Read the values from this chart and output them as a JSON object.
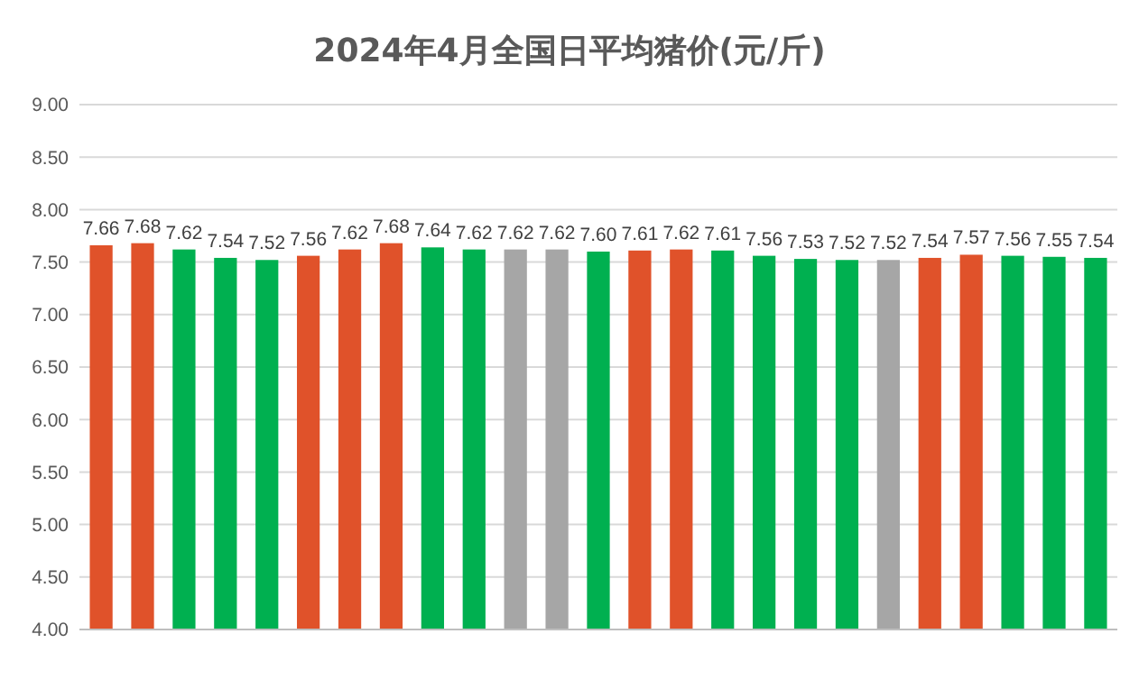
{
  "chart_data": {
    "type": "bar",
    "title": "2024年4月全国日平均猪价(元/斤)",
    "categories": [
      null,
      null,
      null,
      null,
      null,
      null,
      null,
      null,
      null,
      null,
      null,
      null,
      null,
      null,
      null,
      null,
      null,
      null,
      null,
      null,
      null,
      null,
      null,
      null,
      null
    ],
    "values": [
      7.66,
      7.68,
      7.62,
      7.54,
      7.52,
      7.56,
      7.62,
      7.68,
      7.64,
      7.62,
      7.62,
      7.62,
      7.6,
      7.61,
      7.62,
      7.61,
      7.56,
      7.53,
      7.52,
      7.52,
      7.54,
      7.57,
      7.56,
      7.55,
      7.54
    ],
    "value_labels": [
      "7.66",
      "7.68",
      "7.62",
      "7.54",
      "7.52",
      "7.56",
      "7.62",
      "7.68",
      "7.64",
      "7.62",
      "7.62",
      "7.62",
      "7.60",
      "7.61",
      "7.62",
      "7.61",
      "7.56",
      "7.53",
      "7.52",
      "7.52",
      "7.54",
      "7.57",
      "7.56",
      "7.55",
      "7.54"
    ],
    "colors": [
      "#e0522a",
      "#e0522a",
      "#00b050",
      "#00b050",
      "#00b050",
      "#e0522a",
      "#e0522a",
      "#e0522a",
      "#00b050",
      "#00b050",
      "#a6a6a6",
      "#a6a6a6",
      "#00b050",
      "#e0522a",
      "#e0522a",
      "#00b050",
      "#00b050",
      "#00b050",
      "#00b050",
      "#a6a6a6",
      "#e0522a",
      "#e0522a",
      "#00b050",
      "#00b050",
      "#00b050"
    ],
    "ylim": [
      4,
      9
    ],
    "yticks": [
      {
        "value": 4,
        "label": "4.00"
      },
      {
        "value": 4.5,
        "label": "4.50"
      },
      {
        "value": 5,
        "label": "5.00"
      },
      {
        "value": 5.5,
        "label": "5.50"
      },
      {
        "value": 6,
        "label": "6.00"
      },
      {
        "value": 6.5,
        "label": "6.50"
      },
      {
        "value": 7,
        "label": "7.00"
      },
      {
        "value": 7.5,
        "label": "7.50"
      },
      {
        "value": 8,
        "label": "8.00"
      },
      {
        "value": 8.5,
        "label": "8.50"
      },
      {
        "value": 9,
        "label": "9.00"
      }
    ],
    "grid": "y"
  }
}
